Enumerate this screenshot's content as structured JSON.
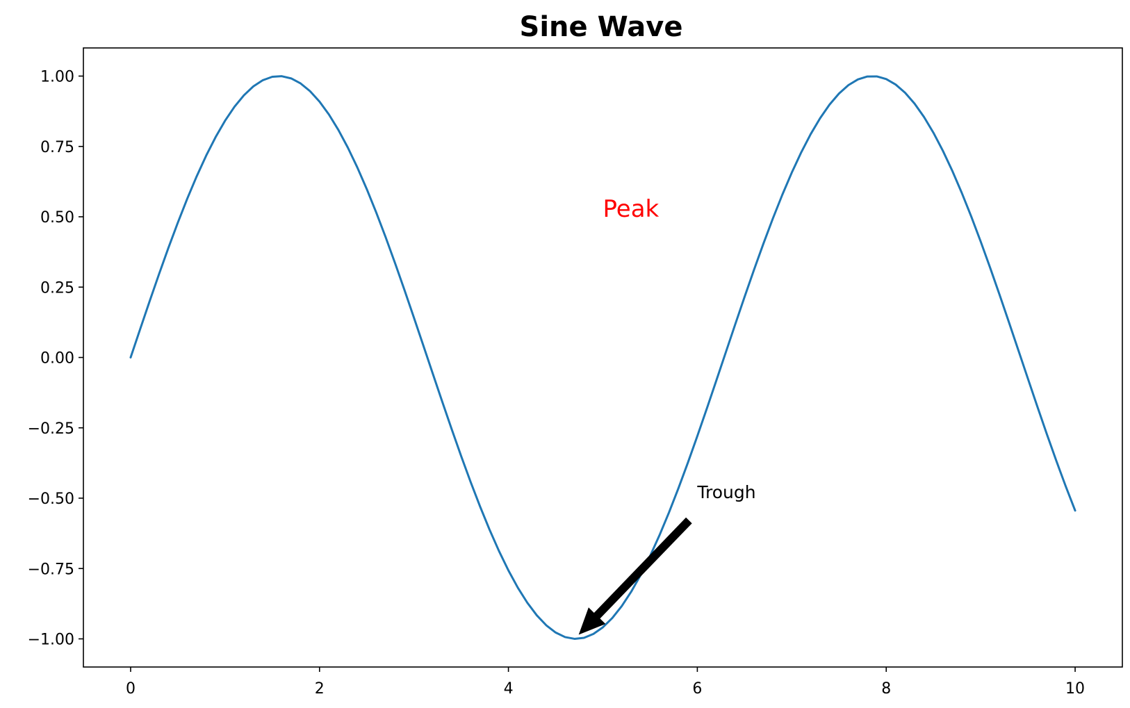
{
  "chart_data": {
    "type": "line",
    "title": "Sine Wave",
    "xlabel": "",
    "ylabel": "",
    "xlim": [
      -0.5,
      10.5
    ],
    "ylim": [
      -1.1,
      1.1
    ],
    "grid": false,
    "legend": "none",
    "x_ticks": [
      {
        "value": 0,
        "label": "0"
      },
      {
        "value": 2,
        "label": "2"
      },
      {
        "value": 4,
        "label": "4"
      },
      {
        "value": 6,
        "label": "6"
      },
      {
        "value": 8,
        "label": "8"
      },
      {
        "value": 10,
        "label": "10"
      }
    ],
    "y_ticks": [
      {
        "value": 1.0,
        "label": "1.00"
      },
      {
        "value": 0.75,
        "label": "0.75"
      },
      {
        "value": 0.5,
        "label": "0.50"
      },
      {
        "value": 0.25,
        "label": "0.25"
      },
      {
        "value": 0.0,
        "label": "0.00"
      },
      {
        "value": -0.25,
        "label": "−0.25"
      },
      {
        "value": -0.5,
        "label": "−0.50"
      },
      {
        "value": -0.75,
        "label": "−0.75"
      },
      {
        "value": -1.0,
        "label": "−1.00"
      }
    ],
    "series": [
      {
        "color": "#1f77b4",
        "x": [
          0,
          0.1,
          0.2,
          0.3,
          0.4,
          0.5,
          0.6,
          0.7,
          0.8,
          0.9,
          1,
          1.1,
          1.2,
          1.3,
          1.4,
          1.5,
          1.6,
          1.7,
          1.8,
          1.9,
          2,
          2.1,
          2.2,
          2.3,
          2.4,
          2.5,
          2.6,
          2.7,
          2.8,
          2.9,
          3,
          3.1,
          3.2,
          3.3,
          3.4,
          3.5,
          3.6,
          3.7,
          3.8,
          3.9,
          4,
          4.1,
          4.2,
          4.3,
          4.4,
          4.5,
          4.6,
          4.7,
          4.8,
          4.9,
          5,
          5.1,
          5.2,
          5.3,
          5.4,
          5.5,
          5.6,
          5.7,
          5.8,
          5.9,
          6,
          6.1,
          6.2,
          6.3,
          6.4,
          6.5,
          6.6,
          6.7,
          6.8,
          6.9,
          7,
          7.1,
          7.2,
          7.3,
          7.4,
          7.5,
          7.6,
          7.7,
          7.8,
          7.9,
          8,
          8.1,
          8.2,
          8.3,
          8.4,
          8.5,
          8.6,
          8.7,
          8.8,
          8.9,
          9,
          9.1,
          9.2,
          9.3,
          9.4,
          9.5,
          9.6,
          9.7,
          9.8,
          9.9,
          10
        ],
        "y": [
          0,
          0.0998,
          0.1987,
          0.2955,
          0.3894,
          0.4794,
          0.5646,
          0.6442,
          0.7174,
          0.7833,
          0.8415,
          0.8912,
          0.932,
          0.9636,
          0.9854,
          0.9975,
          0.9996,
          0.9917,
          0.9738,
          0.9463,
          0.9093,
          0.8632,
          0.8085,
          0.7457,
          0.6755,
          0.5985,
          0.5155,
          0.4274,
          0.335,
          0.2392,
          0.1411,
          0.0416,
          -0.0584,
          -0.1577,
          -0.2555,
          -0.3508,
          -0.4425,
          -0.5298,
          -0.6119,
          -0.6878,
          -0.7568,
          -0.8183,
          -0.8716,
          -0.9162,
          -0.9516,
          -0.9775,
          -0.9937,
          -0.9999,
          -0.9962,
          -0.9825,
          -0.9589,
          -0.9258,
          -0.8835,
          -0.8323,
          -0.7728,
          -0.7055,
          -0.6313,
          -0.5507,
          -0.4646,
          -0.3739,
          -0.2794,
          -0.1822,
          -0.0831,
          0.0168,
          0.1165,
          0.2151,
          0.3115,
          0.4048,
          0.4941,
          0.5784,
          0.657,
          0.729,
          0.7937,
          0.8504,
          0.8987,
          0.938,
          0.9679,
          0.9882,
          0.9985,
          0.9989,
          0.9894,
          0.9699,
          0.9407,
          0.9022,
          0.8546,
          0.7985,
          0.7344,
          0.663,
          0.5849,
          0.501,
          0.4121,
          0.319,
          0.2229,
          0.1245,
          0.0248,
          -0.0752,
          -0.1743,
          -0.2718,
          -0.3665,
          -0.4575,
          -0.544
        ]
      }
    ],
    "annotations": [
      {
        "text": "Peak",
        "x": 5.0,
        "y": 0.5,
        "color": "#ff0000"
      },
      {
        "text": "Trough",
        "x": 6.0,
        "y": -0.5,
        "color": "#000000",
        "arrow_to": {
          "x": 4.7,
          "y": -1.0
        },
        "arrow_color": "#000000"
      }
    ]
  }
}
